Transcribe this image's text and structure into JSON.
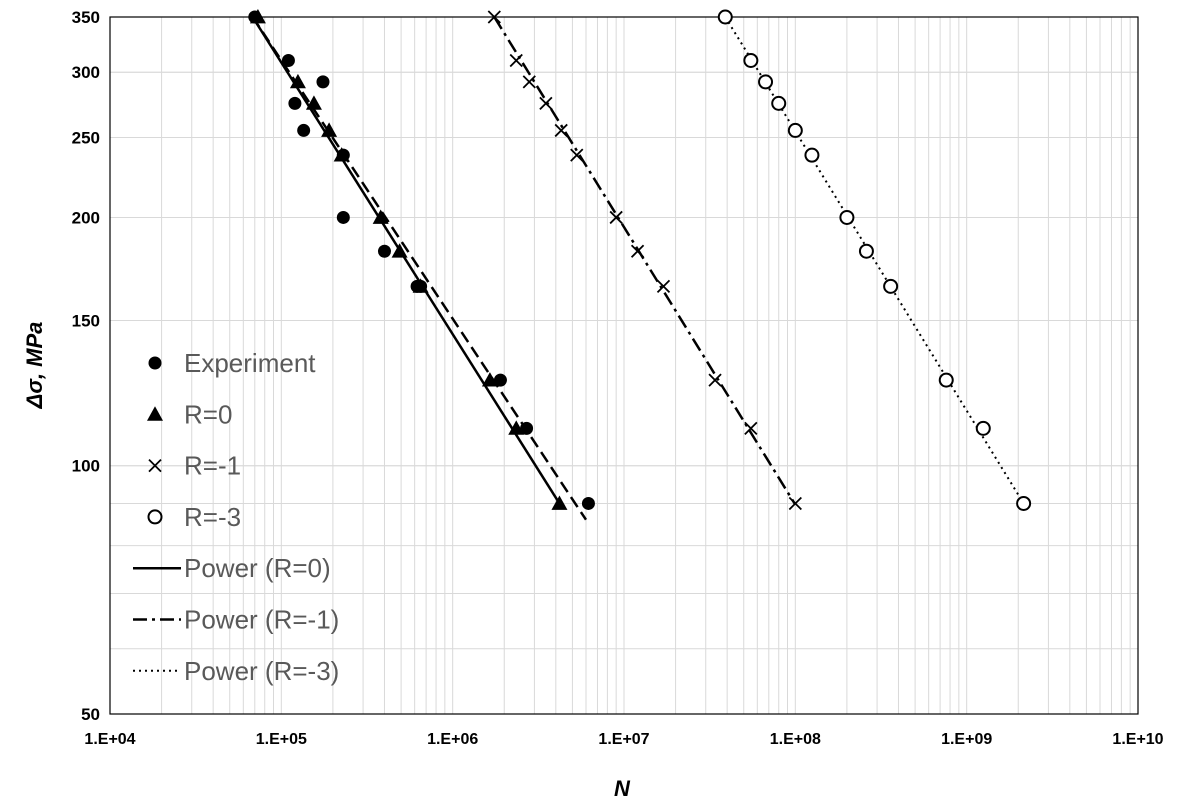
{
  "chart_data": {
    "type": "scatter",
    "title": "",
    "xlabel": "N",
    "ylabel": "Δσ, MPa",
    "x_scale": "log",
    "y_scale": "log",
    "xlim": [
      10000,
      10000000000
    ],
    "ylim": [
      50,
      350
    ],
    "x_ticks": [
      {
        "value": 10000,
        "label": "1.E+04"
      },
      {
        "value": 100000,
        "label": "1.E+05"
      },
      {
        "value": 1000000,
        "label": "1.E+06"
      },
      {
        "value": 10000000,
        "label": "1.E+07"
      },
      {
        "value": 100000000,
        "label": "1.E+08"
      },
      {
        "value": 1000000000,
        "label": "1.E+09"
      },
      {
        "value": 10000000000,
        "label": "1.E+10"
      }
    ],
    "y_ticks": [
      {
        "value": 50,
        "label": "50"
      },
      {
        "value": 100,
        "label": "100"
      },
      {
        "value": 150,
        "label": "150"
      },
      {
        "value": 200,
        "label": "200"
      },
      {
        "value": 250,
        "label": "250"
      },
      {
        "value": 300,
        "label": "300"
      },
      {
        "value": 350,
        "label": "350"
      }
    ],
    "grid": true,
    "legend_position": "left",
    "series": [
      {
        "name": "Experiment",
        "marker": "filled-circle",
        "points": [
          [
            70000,
            350
          ],
          [
            110000,
            310
          ],
          [
            120000,
            275
          ],
          [
            135000,
            255
          ],
          [
            175000,
            292
          ],
          [
            230000,
            238
          ],
          [
            230000,
            200
          ],
          [
            400000,
            182
          ],
          [
            620000,
            165
          ],
          [
            650000,
            165
          ],
          [
            1900000,
            127
          ],
          [
            2700000,
            111
          ],
          [
            6200000,
            90
          ]
        ]
      },
      {
        "name": "R=0",
        "marker": "filled-triangle",
        "points": [
          [
            73000,
            350
          ],
          [
            125000,
            292
          ],
          [
            155000,
            275
          ],
          [
            190000,
            255
          ],
          [
            225000,
            238
          ],
          [
            380000,
            200
          ],
          [
            490000,
            182
          ],
          [
            650000,
            165
          ],
          [
            1650000,
            127
          ],
          [
            2350000,
            111
          ],
          [
            4200000,
            90
          ]
        ]
      },
      {
        "name": "R=-1",
        "marker": "x",
        "points": [
          [
            1750000,
            350
          ],
          [
            2350000,
            310
          ],
          [
            2800000,
            292
          ],
          [
            3500000,
            275
          ],
          [
            4300000,
            255
          ],
          [
            5300000,
            238
          ],
          [
            9000000,
            200
          ],
          [
            12000000,
            182
          ],
          [
            17000000,
            165
          ],
          [
            34000000,
            127
          ],
          [
            55000000,
            111
          ],
          [
            100000000,
            90
          ]
        ]
      },
      {
        "name": "R=-3",
        "marker": "open-circle",
        "points": [
          [
            39000000,
            350
          ],
          [
            55000000,
            310
          ],
          [
            67000000,
            292
          ],
          [
            80000000,
            275
          ],
          [
            100000000,
            255
          ],
          [
            125000000,
            238
          ],
          [
            200000000,
            200
          ],
          [
            260000000,
            182
          ],
          [
            360000000,
            165
          ],
          [
            760000000,
            127
          ],
          [
            1250000000,
            111
          ],
          [
            2150000000,
            90
          ]
        ]
      }
    ],
    "trendlines": [
      {
        "name": "Power (R=0)",
        "style": "solid",
        "points": [
          [
            68000,
            350
          ],
          [
            4200000,
            90
          ]
        ]
      },
      {
        "name": "Power (R=-1)",
        "style": "dashdot",
        "points": [
          [
            1750000,
            350
          ],
          [
            99000000,
            90
          ]
        ]
      },
      {
        "name": "Power (R=-3)",
        "style": "dotted",
        "points": [
          [
            39000000,
            350
          ],
          [
            2150000000,
            90
          ]
        ]
      },
      {
        "name": "",
        "style": "dashed",
        "points": [
          [
            68000,
            350
          ],
          [
            6000000,
            86
          ]
        ]
      }
    ],
    "colors": {
      "marker": "#000000",
      "grid": "#d9d9d9",
      "legend_text": "#595959"
    }
  }
}
